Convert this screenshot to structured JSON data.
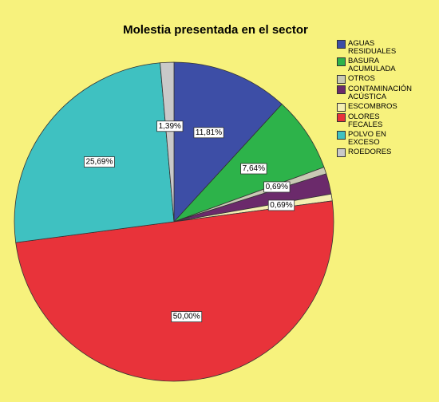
{
  "chart_data": {
    "type": "pie",
    "title": "Molestia presentada en el sector",
    "categories": [
      "AGUAS RESIDUALES",
      "BASURA ACUMULADA",
      "OTROS",
      "CONTAMINACIÓN ACÚSTICA",
      "ESCOMBROS",
      "OLORES FECALES",
      "POLVO EN EXCESO",
      "ROEDORES"
    ],
    "values": [
      11.81,
      7.64,
      0.69,
      2.08,
      0.69,
      50.0,
      25.69,
      1.39
    ],
    "value_labels": [
      "11,81%",
      "7,64%",
      "0,69%",
      null,
      "0,69%",
      "50,00%",
      "25,69%",
      "1,39%"
    ],
    "colors": [
      "#3d4ea6",
      "#2db34a",
      "#c9c9b4",
      "#6b2a6b",
      "#f4efb2",
      "#e8333a",
      "#3fc1c1",
      "#c9c9c9"
    ],
    "legend": "right"
  }
}
